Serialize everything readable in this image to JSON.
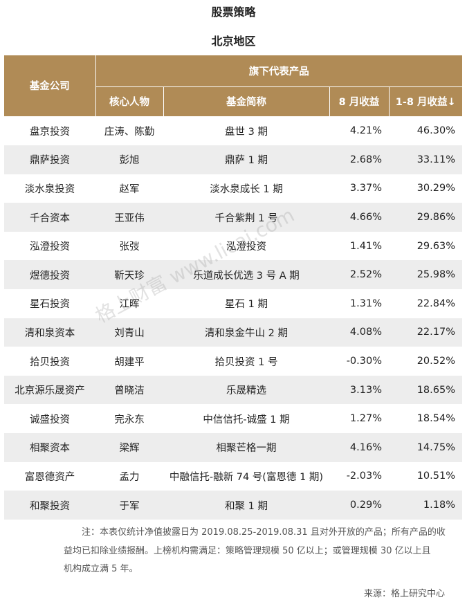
{
  "header": {
    "title": "股票策略",
    "subtitle": "北京地区"
  },
  "table": {
    "columns": {
      "company": "基金公司",
      "group": "旗下代表产品",
      "person": "核心人物",
      "fund": "基金简称",
      "aug": "8 月收益",
      "ytd": "1-8 月收益↓"
    },
    "rows": [
      [
        "盘京投资",
        "庄涛、陈勤",
        "盘世 3 期",
        "4.21%",
        "46.30%"
      ],
      [
        "鼎萨投资",
        "彭旭",
        "鼎萨 1 期",
        "2.68%",
        "33.11%"
      ],
      [
        "淡水泉投资",
        "赵军",
        "淡水泉成长 1 期",
        "3.37%",
        "30.29%"
      ],
      [
        "千合资本",
        "王亚伟",
        "千合紫荆 1 号",
        "4.66%",
        "29.86%"
      ],
      [
        "泓澄投资",
        "张弢",
        "泓澄投资",
        "1.41%",
        "29.63%"
      ],
      [
        "煜德投资",
        "靳天珍",
        "乐道成长优选 3 号 A 期",
        "2.52%",
        "25.98%"
      ],
      [
        "星石投资",
        "江晖",
        "星石 1 期",
        "1.31%",
        "22.84%"
      ],
      [
        "清和泉资本",
        "刘青山",
        "清和泉金牛山 2 期",
        "4.08%",
        "22.17%"
      ],
      [
        "拾贝投资",
        "胡建平",
        "拾贝投资 1 号",
        "-0.30%",
        "20.52%"
      ],
      [
        "北京源乐晟资产",
        "曾晓洁",
        "乐晟精选",
        "3.13%",
        "18.65%"
      ],
      [
        "诚盛投资",
        "完永东",
        "中信信托-诚盛 1 期",
        "1.27%",
        "18.54%"
      ],
      [
        "相聚资本",
        "梁辉",
        "相聚芒格一期",
        "4.16%",
        "14.75%"
      ],
      [
        "富恩德资产",
        "孟力",
        "中融信托-融新 74 号(富恩德 1 期)",
        "-2.03%",
        "10.51%"
      ],
      [
        "和聚投资",
        "于军",
        "和聚 1 期",
        "0.29%",
        "1.18%"
      ]
    ]
  },
  "watermark": "格上财富 www.licai.com",
  "note": [
    "注：本表仅统计净值披露日为 2019.08.25-2019.08.31 且对外开放的产品；所有产品的收",
    "益均已扣除业绩报酬。上榜机构需满足：策略管理规模 50 亿以上；或管理规模 30 亿以上且",
    "机构成立满 5 年。"
  ],
  "source": "来源：格上研究中心"
}
